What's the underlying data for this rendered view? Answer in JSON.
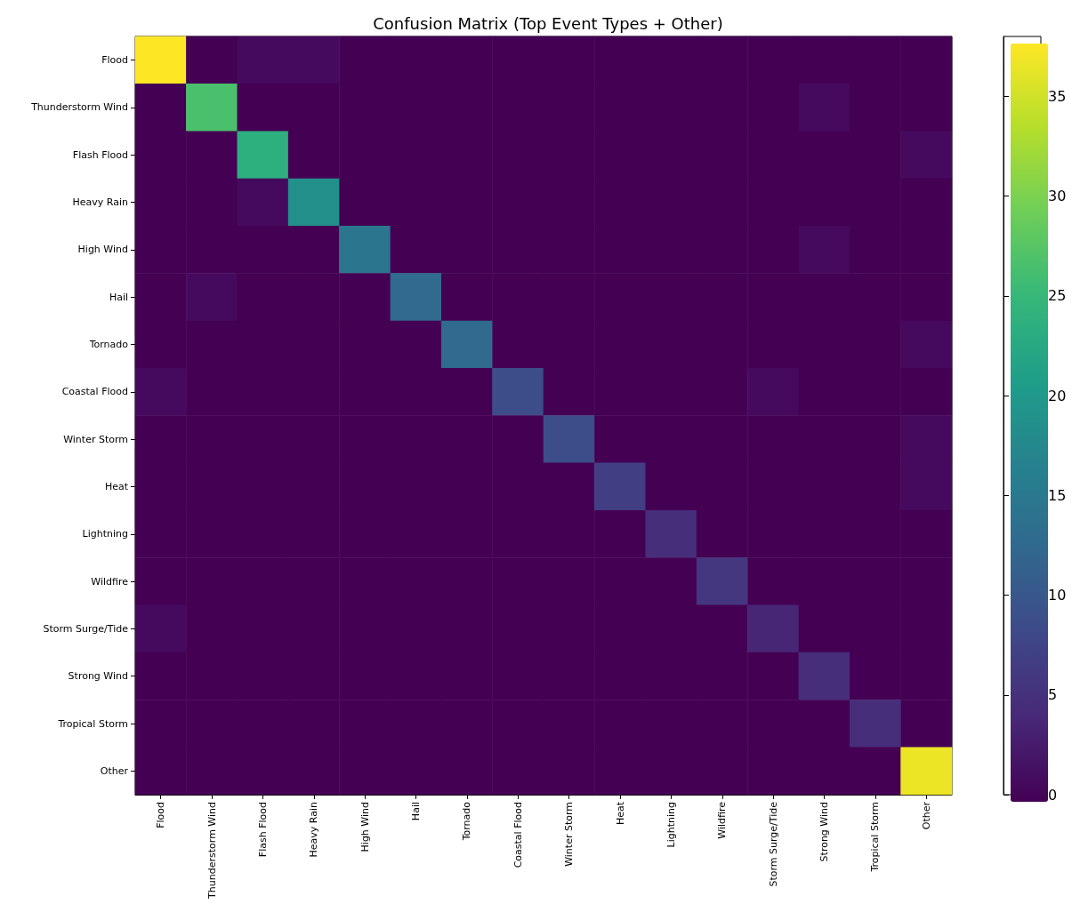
{
  "chart_data": {
    "type": "heatmap",
    "title": "Confusion Matrix (Top Event Types + Other)",
    "categories": [
      "Flood",
      "Thunderstorm Wind",
      "Flash Flood",
      "Heavy Rain",
      "High Wind",
      "Hail",
      "Tornado",
      "Coastal Flood",
      "Winter Storm",
      "Heat",
      "Lightning",
      "Wildfire",
      "Storm Surge/Tide",
      "Strong Wind",
      "Tropical Storm",
      "Other"
    ],
    "y_categories": [
      "Flood",
      "Thunderstorm Wind",
      "Flash Flood",
      "Heavy Rain",
      "High Wind",
      "Hail",
      "Tornado",
      "Coastal Flood",
      "Winter Storm",
      "Heat",
      "Lightning",
      "Wildfire",
      "Storm Surge/Tide",
      "Strong Wind",
      "Tropical Storm",
      "Other"
    ],
    "cells": [
      [
        38,
        0,
        1,
        1,
        0,
        0,
        0,
        0,
        0,
        0,
        0,
        0,
        0,
        0,
        0,
        0
      ],
      [
        0,
        27,
        0,
        0,
        0,
        0,
        0,
        0,
        0,
        0,
        0,
        0,
        0,
        1,
        0,
        0
      ],
      [
        0,
        0,
        24,
        0,
        0,
        0,
        0,
        0,
        0,
        0,
        0,
        0,
        0,
        0,
        0,
        1
      ],
      [
        0,
        0,
        1,
        19,
        0,
        0,
        0,
        0,
        0,
        0,
        0,
        0,
        0,
        0,
        0,
        0
      ],
      [
        0,
        0,
        0,
        0,
        15,
        0,
        0,
        0,
        0,
        0,
        0,
        0,
        0,
        1,
        0,
        0
      ],
      [
        0,
        1,
        0,
        0,
        0,
        13,
        0,
        0,
        0,
        0,
        0,
        0,
        0,
        0,
        0,
        0
      ],
      [
        0,
        0,
        0,
        0,
        0,
        0,
        13,
        0,
        0,
        0,
        0,
        0,
        0,
        0,
        0,
        1
      ],
      [
        1,
        0,
        0,
        0,
        0,
        0,
        0,
        9,
        0,
        0,
        0,
        0,
        1,
        0,
        0,
        0
      ],
      [
        0,
        0,
        0,
        0,
        0,
        0,
        0,
        0,
        9,
        0,
        0,
        0,
        0,
        0,
        0,
        1
      ],
      [
        0,
        0,
        0,
        0,
        0,
        0,
        0,
        0,
        0,
        7,
        0,
        0,
        0,
        0,
        0,
        1
      ],
      [
        0,
        0,
        0,
        0,
        0,
        0,
        0,
        0,
        0,
        0,
        5,
        0,
        0,
        0,
        0,
        0
      ],
      [
        0,
        0,
        0,
        0,
        0,
        0,
        0,
        0,
        0,
        0,
        0,
        6,
        0,
        0,
        0,
        0
      ],
      [
        1,
        0,
        0,
        0,
        0,
        0,
        0,
        0,
        0,
        0,
        0,
        0,
        4,
        0,
        0,
        0
      ],
      [
        0,
        0,
        0,
        0,
        0,
        0,
        0,
        0,
        0,
        0,
        0,
        0,
        0,
        5,
        0,
        0
      ],
      [
        0,
        0,
        0,
        0,
        0,
        0,
        0,
        0,
        0,
        0,
        0,
        0,
        0,
        0,
        5,
        0
      ],
      [
        0,
        0,
        0,
        0,
        0,
        0,
        0,
        0,
        0,
        0,
        0,
        0,
        0,
        0,
        0,
        37
      ]
    ],
    "clim": [
      0,
      38
    ],
    "cticks": [
      0,
      5,
      10,
      15,
      20,
      25,
      30,
      35
    ]
  }
}
